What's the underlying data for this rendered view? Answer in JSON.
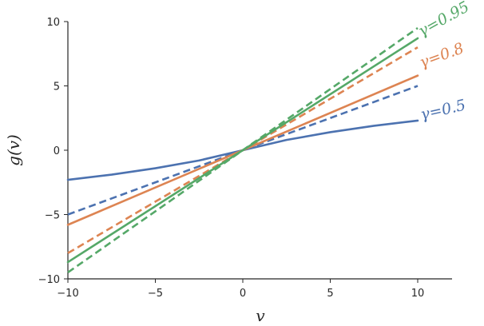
{
  "chart_data": {
    "type": "line",
    "title": "",
    "xlabel": "v",
    "ylabel": "g(v)",
    "xlim": [
      -10,
      10
    ],
    "ylim": [
      -10,
      10
    ],
    "xticks": [
      -10,
      -5,
      0,
      5,
      10
    ],
    "yticks": [
      -10,
      -5,
      0,
      5,
      10
    ],
    "xtick_labels": [
      "−10",
      "−5",
      "0",
      "5",
      "10"
    ],
    "ytick_labels": [
      "−10",
      "−5",
      "0",
      "5",
      "10"
    ],
    "grid": false,
    "legend": "none",
    "annotations": [
      {
        "text": "γ=0.95",
        "color": "#55a868"
      },
      {
        "text": "γ=0.8",
        "color": "#dd8452"
      },
      {
        "text": "γ=0.5",
        "color": "#4c72b0"
      }
    ],
    "series": [
      {
        "gamma": 0.5,
        "style": "solid",
        "color": "#4c72b0",
        "x": [
          -10,
          -7.5,
          -5,
          -2.5,
          0,
          2.5,
          5,
          7.5,
          10
        ],
        "y": [
          -2.3,
          -1.9,
          -1.4,
          -0.8,
          0,
          0.8,
          1.4,
          1.9,
          2.3
        ]
      },
      {
        "gamma": 0.5,
        "style": "dashed",
        "color": "#4c72b0",
        "x": [
          -10,
          10
        ],
        "y": [
          -5,
          5
        ]
      },
      {
        "gamma": 0.8,
        "style": "solid",
        "color": "#dd8452",
        "x": [
          -10,
          0,
          10
        ],
        "y": [
          -5.8,
          0,
          5.8
        ]
      },
      {
        "gamma": 0.8,
        "style": "dashed",
        "color": "#dd8452",
        "x": [
          -10,
          10
        ],
        "y": [
          -8,
          8
        ]
      },
      {
        "gamma": 0.95,
        "style": "solid",
        "color": "#55a868",
        "x": [
          -10,
          0,
          10
        ],
        "y": [
          -8.7,
          0,
          8.7
        ]
      },
      {
        "gamma": 0.95,
        "style": "dashed",
        "color": "#55a868",
        "x": [
          -10,
          10
        ],
        "y": [
          -9.5,
          9.5
        ]
      }
    ]
  }
}
